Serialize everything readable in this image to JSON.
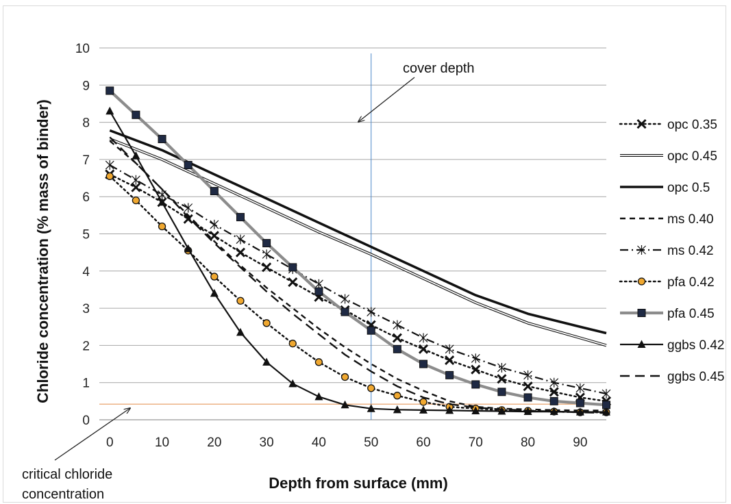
{
  "chart_data": {
    "type": "line",
    "xlabel": "Depth from surface (mm)",
    "ylabel": "Chloride concentration (% mass of binder)",
    "xlim": [
      -2,
      95
    ],
    "ylim": [
      0,
      10
    ],
    "x_ticks": [
      0,
      10,
      20,
      30,
      40,
      50,
      60,
      70,
      80,
      90
    ],
    "y_ticks": [
      0,
      1,
      2,
      3,
      4,
      5,
      6,
      7,
      8,
      9,
      10
    ],
    "grid": "horizontal",
    "legend_position": "right",
    "annotations": {
      "cover_depth": {
        "text": "cover depth",
        "x": 50
      },
      "critical": {
        "line1": "critical chloride",
        "line2": "concentration",
        "y": 0.42
      }
    },
    "colors": {
      "cover_line": "#4a86c8",
      "critical_line": "#e59a5c",
      "grid": "#a6a6a6",
      "pfa045": "#8c8c8c",
      "marker_orange": "#f0a830"
    },
    "series": [
      {
        "name": "opc 0.35",
        "style": "dotted",
        "marker": "x",
        "x": [
          0,
          5,
          10,
          15,
          20,
          25,
          30,
          35,
          40,
          45,
          50,
          55,
          60,
          65,
          70,
          75,
          80,
          85,
          90,
          95
        ],
        "y": [
          6.6,
          6.25,
          5.85,
          5.4,
          4.95,
          4.5,
          4.1,
          3.7,
          3.3,
          2.95,
          2.55,
          2.2,
          1.9,
          1.6,
          1.35,
          1.1,
          0.9,
          0.75,
          0.6,
          0.5
        ]
      },
      {
        "name": "opc 0.45",
        "style": "double",
        "x": [
          0,
          10,
          20,
          30,
          40,
          50,
          60,
          70,
          80,
          90,
          95
        ],
        "y": [
          7.55,
          7.0,
          6.35,
          5.7,
          5.05,
          4.45,
          3.8,
          3.15,
          2.6,
          2.2,
          2.0
        ]
      },
      {
        "name": "opc 0.5",
        "style": "thick",
        "x": [
          0,
          10,
          20,
          30,
          40,
          50,
          60,
          70,
          80,
          90,
          95
        ],
        "y": [
          7.78,
          7.25,
          6.6,
          5.95,
          5.3,
          4.65,
          4.0,
          3.35,
          2.85,
          2.5,
          2.33
        ]
      },
      {
        "name": "ms 0.40",
        "style": "dashed",
        "x": [
          0,
          5,
          10,
          15,
          20,
          25,
          30,
          35,
          40,
          45,
          50,
          55,
          60,
          65,
          70,
          75,
          80,
          85,
          90,
          95
        ],
        "y": [
          7.5,
          6.9,
          6.2,
          5.5,
          4.8,
          4.15,
          3.55,
          3.0,
          2.45,
          1.95,
          1.5,
          1.1,
          0.78,
          0.5,
          0.35,
          0.3,
          0.28,
          0.26,
          0.25,
          0.25
        ]
      },
      {
        "name": "ms 0.42",
        "style": "dash-dot",
        "marker": "asterisk",
        "x": [
          0,
          5,
          10,
          15,
          20,
          25,
          30,
          35,
          40,
          45,
          50,
          55,
          60,
          65,
          70,
          75,
          80,
          85,
          90,
          95
        ],
        "y": [
          6.85,
          6.45,
          6.05,
          5.7,
          5.25,
          4.85,
          4.45,
          4.05,
          3.65,
          3.25,
          2.9,
          2.55,
          2.2,
          1.9,
          1.65,
          1.4,
          1.2,
          1.0,
          0.85,
          0.7
        ]
      },
      {
        "name": "pfa 0.42",
        "style": "dotted",
        "marker": "circle",
        "x": [
          0,
          5,
          10,
          15,
          20,
          25,
          30,
          35,
          40,
          45,
          50,
          55,
          60,
          65,
          70,
          75,
          80,
          85,
          90,
          95
        ],
        "y": [
          6.55,
          5.9,
          5.2,
          4.55,
          3.85,
          3.2,
          2.6,
          2.05,
          1.55,
          1.15,
          0.85,
          0.65,
          0.48,
          0.35,
          0.3,
          0.26,
          0.24,
          0.22,
          0.2,
          0.2
        ]
      },
      {
        "name": "pfa 0.45",
        "style": "grey-thick",
        "marker": "square",
        "x": [
          0,
          5,
          10,
          15,
          20,
          25,
          30,
          35,
          40,
          45,
          50,
          55,
          60,
          65,
          70,
          75,
          80,
          85,
          90,
          95
        ],
        "y": [
          8.85,
          8.2,
          7.55,
          6.85,
          6.15,
          5.45,
          4.75,
          4.1,
          3.45,
          2.9,
          2.4,
          1.9,
          1.5,
          1.2,
          0.95,
          0.75,
          0.6,
          0.5,
          0.45,
          0.4
        ]
      },
      {
        "name": "ggbs 0.42",
        "style": "solid",
        "marker": "triangle",
        "x": [
          0,
          5,
          10,
          15,
          20,
          25,
          30,
          35,
          40,
          45,
          50,
          55,
          60,
          65,
          70,
          75,
          80,
          85,
          90,
          95
        ],
        "y": [
          8.3,
          7.1,
          5.85,
          4.6,
          3.4,
          2.35,
          1.55,
          0.97,
          0.62,
          0.4,
          0.3,
          0.27,
          0.26,
          0.25,
          0.24,
          0.23,
          0.22,
          0.22,
          0.21,
          0.21
        ]
      },
      {
        "name": "ggbs 0.45",
        "style": "long-dash",
        "x": [
          0,
          5,
          10,
          15,
          20,
          25,
          30,
          35,
          40,
          45,
          50,
          55,
          60,
          65,
          70,
          75,
          80,
          85,
          90,
          95
        ],
        "y": [
          7.6,
          6.9,
          6.2,
          5.45,
          4.75,
          4.1,
          3.45,
          2.85,
          2.3,
          1.75,
          1.3,
          0.9,
          0.6,
          0.42,
          0.33,
          0.28,
          0.25,
          0.22,
          0.2,
          0.18
        ]
      }
    ]
  }
}
